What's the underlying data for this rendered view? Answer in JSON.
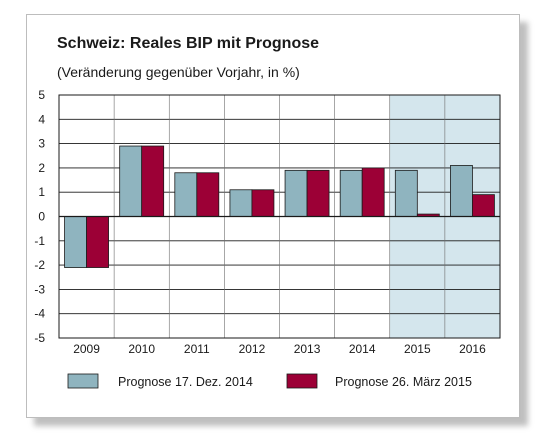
{
  "chart_data": {
    "type": "bar",
    "title": "Schweiz: Reales BIP mit Prognose",
    "subtitle": "(Veränderung gegenüber Vorjahr, in %)",
    "categories": [
      "2009",
      "2010",
      "2011",
      "2012",
      "2013",
      "2014",
      "2015",
      "2016"
    ],
    "series": [
      {
        "name": "Prognose 17. Dez. 2014",
        "color": "#8fb4bf",
        "values": [
          -2.1,
          2.9,
          1.8,
          1.1,
          1.9,
          1.9,
          1.9,
          2.1
        ]
      },
      {
        "name": "Prognose 26. März 2015",
        "color": "#9c0036",
        "values": [
          -2.1,
          2.9,
          1.8,
          1.1,
          1.9,
          2.0,
          0.1,
          0.9
        ]
      }
    ],
    "ylim": [
      -5,
      5
    ],
    "yticks": [
      "5",
      "4",
      "3",
      "2",
      "1",
      "0",
      "-1",
      "-2",
      "-3",
      "-4",
      "-5"
    ],
    "forecast_shading": {
      "from_category": "2015",
      "to_category": "2016",
      "color": "#d4e6ed"
    },
    "grid": true,
    "legend_position": "bottom"
  }
}
